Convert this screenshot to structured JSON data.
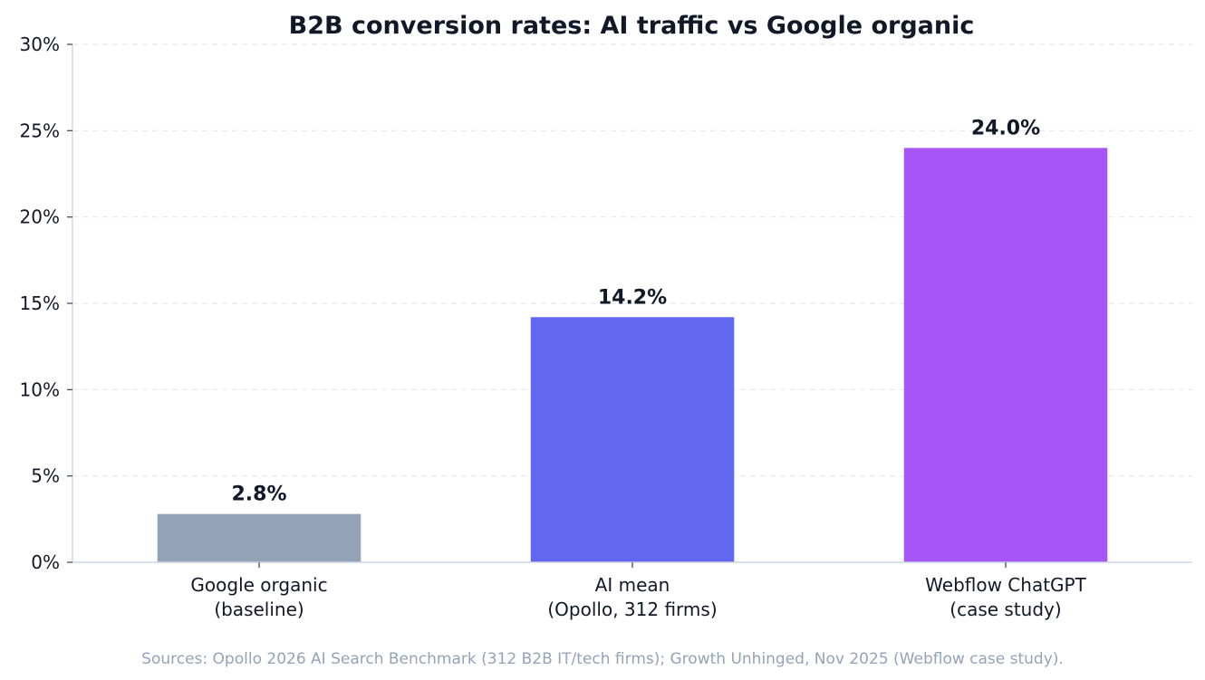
{
  "chart_data": {
    "type": "bar",
    "title": "B2B conversion rates: AI traffic vs Google organic",
    "xlabel": "",
    "ylabel": "",
    "categories": [
      [
        "Google organic",
        "(baseline)"
      ],
      [
        "AI mean",
        "(Opollo, 312 firms)"
      ],
      [
        "Webflow ChatGPT",
        "(case study)"
      ]
    ],
    "values": [
      2.8,
      14.2,
      24.0
    ],
    "value_labels": [
      "2.8%",
      "14.2%",
      "24.0%"
    ],
    "colors": [
      "#94a3b8",
      "#6366f1",
      "#a855f7"
    ],
    "ylim": [
      0,
      30
    ],
    "yticks": [
      0,
      5,
      10,
      15,
      20,
      25,
      30
    ],
    "ytick_labels": [
      "0%",
      "5%",
      "10%",
      "15%",
      "20%",
      "25%",
      "30%"
    ],
    "grid": "horizontal dashed",
    "legend": "none",
    "source": "Sources: Opollo 2026 AI Search Benchmark (312 B2B IT/tech firms); Growth Unhinged, Nov 2025 (Webflow case study)."
  }
}
